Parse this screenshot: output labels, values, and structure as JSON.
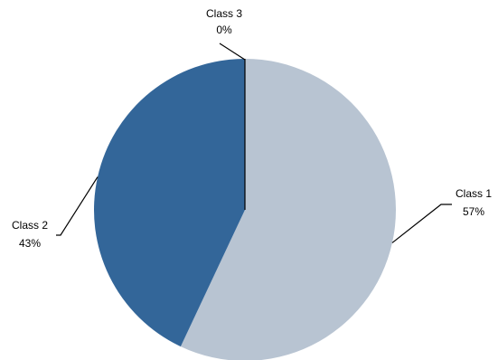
{
  "chart_data": {
    "type": "pie",
    "start_angle": "12 o'clock",
    "direction": "clockwise",
    "legend": "none",
    "slices": [
      {
        "label": "Class 1",
        "value": 57,
        "value_label": "57%",
        "color": "#b8c4d2"
      },
      {
        "label": "Class 2",
        "value": 43,
        "value_label": "43%",
        "color": "#336699"
      },
      {
        "label": "Class 3",
        "value": 0,
        "value_label": "0%",
        "color": "#336699"
      }
    ]
  }
}
